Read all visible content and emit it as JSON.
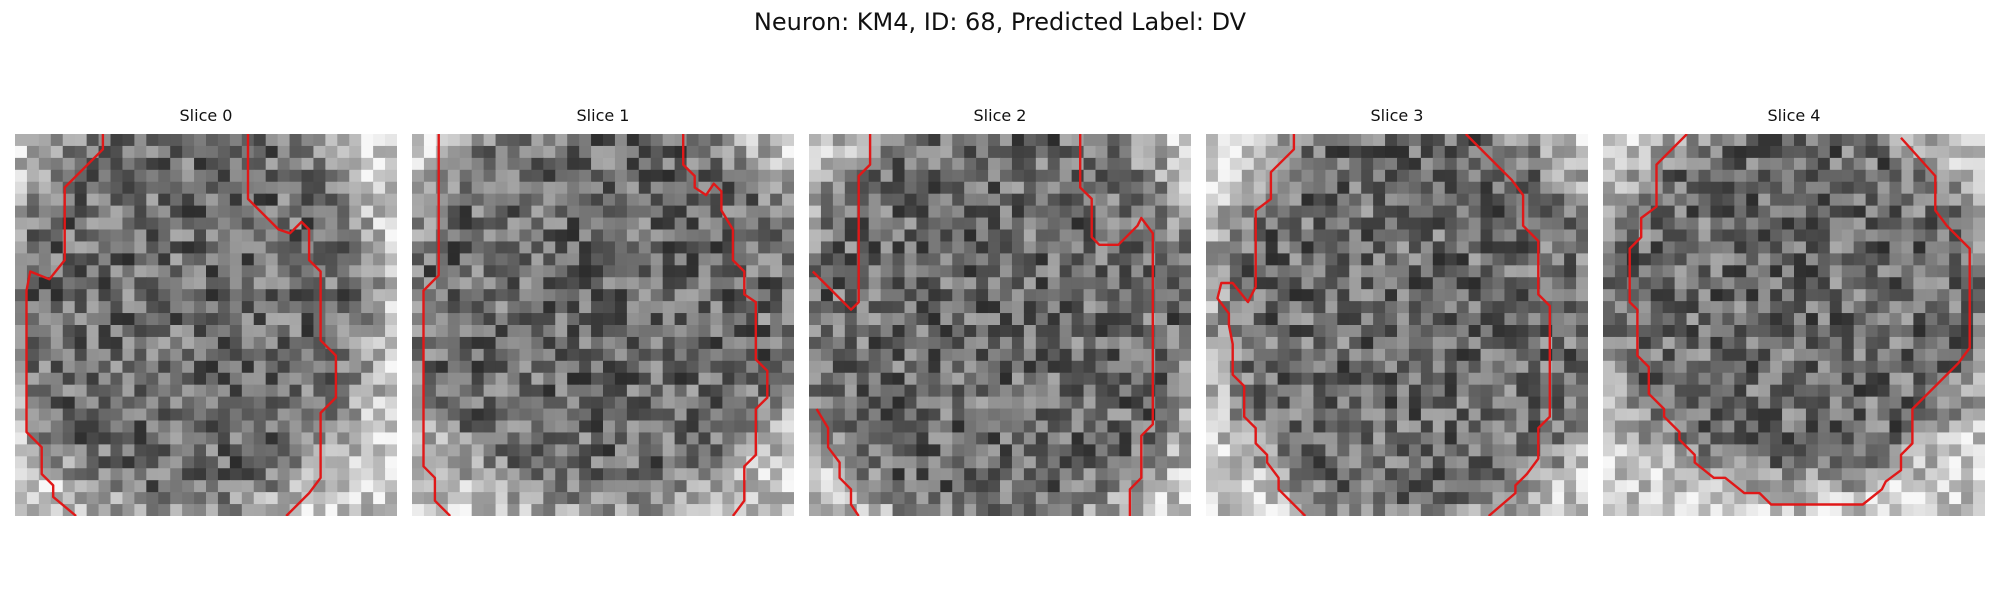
{
  "figure": {
    "title": "Neuron: KM4, ID: 68, Predicted Label: DV"
  },
  "chart_data": {
    "type": "heatmap",
    "colormap": "grayscale",
    "grid_size": [
      32,
      32
    ],
    "contour_color": "#e01818",
    "slices": [
      {
        "title": "Slice 0",
        "seed": 11,
        "blob": {
          "cx": 0.45,
          "cy": 0.45,
          "rx": 0.42,
          "ry": 0.48
        },
        "contours": [
          [
            [
              0.23,
              0.0
            ],
            [
              0.23,
              0.04
            ],
            [
              0.13,
              0.14
            ],
            [
              0.13,
              0.33
            ],
            [
              0.09,
              0.38
            ],
            [
              0.04,
              0.36
            ],
            [
              0.03,
              0.41
            ],
            [
              0.03,
              0.78
            ],
            [
              0.07,
              0.82
            ],
            [
              0.07,
              0.89
            ],
            [
              0.1,
              0.92
            ],
            [
              0.1,
              0.95
            ],
            [
              0.16,
              1.0
            ]
          ],
          [
            [
              0.61,
              0.0
            ],
            [
              0.61,
              0.17
            ],
            [
              0.66,
              0.22
            ],
            [
              0.69,
              0.25
            ],
            [
              0.72,
              0.26
            ],
            [
              0.75,
              0.23
            ],
            [
              0.77,
              0.25
            ],
            [
              0.77,
              0.33
            ],
            [
              0.8,
              0.36
            ],
            [
              0.8,
              0.54
            ],
            [
              0.84,
              0.58
            ],
            [
              0.84,
              0.69
            ],
            [
              0.8,
              0.73
            ],
            [
              0.8,
              0.9
            ],
            [
              0.77,
              0.94
            ],
            [
              0.71,
              1.0
            ]
          ]
        ]
      },
      {
        "title": "Slice 1",
        "seed": 29,
        "blob": {
          "cx": 0.5,
          "cy": 0.44,
          "rx": 0.46,
          "ry": 0.47
        },
        "contours": [
          [
            [
              0.07,
              0.0
            ],
            [
              0.07,
              0.37
            ],
            [
              0.03,
              0.41
            ],
            [
              0.03,
              0.87
            ],
            [
              0.06,
              0.9
            ],
            [
              0.06,
              0.96
            ],
            [
              0.1,
              1.0
            ]
          ],
          [
            [
              0.71,
              0.0
            ],
            [
              0.71,
              0.08
            ],
            [
              0.74,
              0.11
            ],
            [
              0.74,
              0.14
            ],
            [
              0.77,
              0.16
            ],
            [
              0.79,
              0.13
            ],
            [
              0.81,
              0.15
            ],
            [
              0.81,
              0.2
            ],
            [
              0.84,
              0.25
            ],
            [
              0.84,
              0.33
            ],
            [
              0.87,
              0.36
            ],
            [
              0.87,
              0.42
            ],
            [
              0.9,
              0.44
            ],
            [
              0.9,
              0.59
            ],
            [
              0.93,
              0.62
            ],
            [
              0.93,
              0.69
            ],
            [
              0.9,
              0.72
            ],
            [
              0.9,
              0.84
            ],
            [
              0.87,
              0.87
            ],
            [
              0.87,
              0.96
            ],
            [
              0.84,
              1.0
            ]
          ]
        ]
      },
      {
        "title": "Slice 2",
        "seed": 47,
        "blob": {
          "cx": 0.5,
          "cy": 0.48,
          "rx": 0.47,
          "ry": 0.5
        },
        "contours": [
          [
            [
              0.16,
              0.0
            ],
            [
              0.16,
              0.08
            ],
            [
              0.13,
              0.11
            ],
            [
              0.13,
              0.44
            ],
            [
              0.11,
              0.46
            ],
            [
              0.01,
              0.36
            ]
          ],
          [
            [
              0.71,
              0.0
            ],
            [
              0.71,
              0.14
            ],
            [
              0.74,
              0.17
            ],
            [
              0.74,
              0.27
            ],
            [
              0.76,
              0.29
            ],
            [
              0.81,
              0.29
            ],
            [
              0.86,
              0.24
            ],
            [
              0.87,
              0.22
            ],
            [
              0.9,
              0.26
            ],
            [
              0.9,
              0.38
            ],
            [
              0.9,
              0.76
            ],
            [
              0.87,
              0.79
            ],
            [
              0.87,
              0.9
            ],
            [
              0.84,
              0.93
            ],
            [
              0.84,
              1.0
            ]
          ],
          [
            [
              0.02,
              0.72
            ],
            [
              0.05,
              0.77
            ],
            [
              0.05,
              0.82
            ],
            [
              0.08,
              0.86
            ],
            [
              0.08,
              0.9
            ],
            [
              0.11,
              0.93
            ],
            [
              0.11,
              0.97
            ],
            [
              0.13,
              1.0
            ]
          ]
        ]
      },
      {
        "title": "Slice 3",
        "seed": 83,
        "blob": {
          "cx": 0.54,
          "cy": 0.47,
          "rx": 0.44,
          "ry": 0.49
        },
        "contours": [
          [
            [
              0.23,
              0.0
            ],
            [
              0.23,
              0.04
            ],
            [
              0.17,
              0.1
            ],
            [
              0.17,
              0.17
            ],
            [
              0.13,
              0.2
            ],
            [
              0.13,
              0.4
            ],
            [
              0.11,
              0.44
            ],
            [
              0.07,
              0.39
            ],
            [
              0.04,
              0.39
            ],
            [
              0.03,
              0.43
            ],
            [
              0.06,
              0.47
            ],
            [
              0.06,
              0.5
            ],
            [
              0.07,
              0.55
            ],
            [
              0.07,
              0.63
            ],
            [
              0.1,
              0.66
            ],
            [
              0.1,
              0.74
            ],
            [
              0.13,
              0.77
            ],
            [
              0.13,
              0.81
            ],
            [
              0.16,
              0.84
            ],
            [
              0.16,
              0.86
            ],
            [
              0.19,
              0.9
            ],
            [
              0.19,
              0.93
            ],
            [
              0.26,
              1.0
            ]
          ],
          [
            [
              0.68,
              0.0
            ],
            [
              0.77,
              0.09
            ],
            [
              0.8,
              0.12
            ],
            [
              0.83,
              0.16
            ],
            [
              0.83,
              0.24
            ],
            [
              0.87,
              0.28
            ],
            [
              0.87,
              0.42
            ],
            [
              0.9,
              0.45
            ],
            [
              0.9,
              0.74
            ],
            [
              0.87,
              0.77
            ],
            [
              0.87,
              0.85
            ],
            [
              0.84,
              0.89
            ],
            [
              0.81,
              0.92
            ],
            [
              0.81,
              0.94
            ],
            [
              0.74,
              1.0
            ]
          ]
        ]
      },
      {
        "title": "Slice 4",
        "seed": 101,
        "blob": {
          "cx": 0.5,
          "cy": 0.43,
          "rx": 0.46,
          "ry": 0.42
        },
        "contours": [
          [
            [
              0.22,
              0.0
            ],
            [
              0.14,
              0.08
            ],
            [
              0.14,
              0.19
            ],
            [
              0.1,
              0.22
            ],
            [
              0.1,
              0.27
            ],
            [
              0.07,
              0.3
            ],
            [
              0.07,
              0.44
            ],
            [
              0.09,
              0.46
            ],
            [
              0.09,
              0.58
            ],
            [
              0.12,
              0.61
            ],
            [
              0.12,
              0.68
            ],
            [
              0.16,
              0.72
            ],
            [
              0.16,
              0.74
            ],
            [
              0.2,
              0.78
            ],
            [
              0.2,
              0.8
            ],
            [
              0.24,
              0.84
            ],
            [
              0.24,
              0.86
            ],
            [
              0.29,
              0.9
            ],
            [
              0.32,
              0.9
            ],
            [
              0.37,
              0.94
            ],
            [
              0.41,
              0.94
            ],
            [
              0.44,
              0.97
            ],
            [
              0.6,
              0.97
            ],
            [
              0.68,
              0.97
            ],
            [
              0.73,
              0.93
            ],
            [
              0.74,
              0.91
            ],
            [
              0.78,
              0.88
            ],
            [
              0.78,
              0.84
            ],
            [
              0.81,
              0.81
            ],
            [
              0.81,
              0.72
            ],
            [
              0.93,
              0.6
            ],
            [
              0.96,
              0.56
            ],
            [
              0.96,
              0.3
            ],
            [
              0.9,
              0.24
            ],
            [
              0.87,
              0.2
            ],
            [
              0.87,
              0.11
            ],
            [
              0.78,
              0.01
            ]
          ]
        ]
      }
    ]
  }
}
